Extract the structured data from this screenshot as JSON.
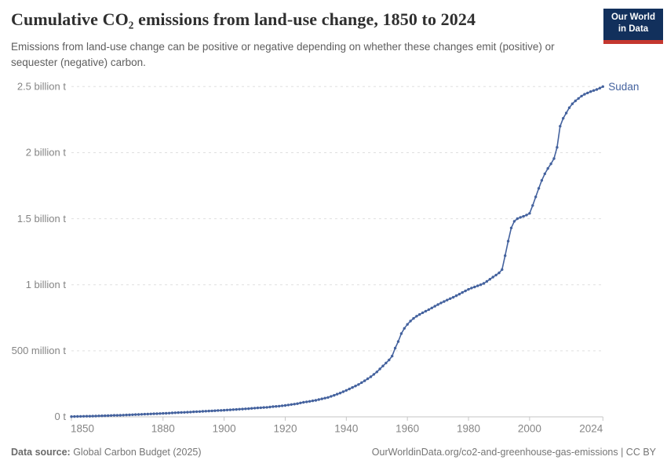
{
  "header": {
    "title": "Cumulative CO₂ emissions from land-use change, 1850 to 2024",
    "subtitle": "Emissions from land-use change can be positive or negative depending on whether these changes emit (positive) or sequester (negative) carbon."
  },
  "logo": {
    "line1": "Our World",
    "line2": "in Data",
    "bg_color": "#12305c",
    "accent_color": "#c4372f"
  },
  "chart_data": {
    "type": "line",
    "title": "Cumulative CO₂ emissions from land-use change, 1850 to 2024",
    "unit": "tonnes of CO₂",
    "xlabel": "",
    "ylabel": "",
    "x_range": [
      1850,
      2024
    ],
    "y_range_billion_t": [
      0,
      2.5
    ],
    "grid": "dashed-horizontal",
    "legend_position": "end-of-line-label",
    "line_color": "#44629e",
    "axis_text_color": "#858585",
    "grid_color": "#e0e0e0",
    "axis_line_color": "#c6c6c6",
    "y_ticks": [
      {
        "value": 0,
        "label": "0 t"
      },
      {
        "value": 0.5,
        "label": "500 million t"
      },
      {
        "value": 1,
        "label": "1 billion t"
      },
      {
        "value": 1.5,
        "label": "1.5 billion t"
      },
      {
        "value": 2,
        "label": "2 billion t"
      },
      {
        "value": 2.5,
        "label": "2.5 billion t"
      }
    ],
    "x_ticks": [
      {
        "year": 1850,
        "label": "1850"
      },
      {
        "year": 1880,
        "label": "1880"
      },
      {
        "year": 1900,
        "label": "1900"
      },
      {
        "year": 1920,
        "label": "1920"
      },
      {
        "year": 1940,
        "label": "1940"
      },
      {
        "year": 1960,
        "label": "1960"
      },
      {
        "year": 1980,
        "label": "1980"
      },
      {
        "year": 2000,
        "label": "2000"
      },
      {
        "year": 2024,
        "label": "2024"
      }
    ],
    "series": [
      {
        "name": "Sudan",
        "unit": "billion t",
        "points": [
          [
            1850,
            0.002
          ],
          [
            1852,
            0.003
          ],
          [
            1854,
            0.004
          ],
          [
            1856,
            0.005
          ],
          [
            1858,
            0.006
          ],
          [
            1860,
            0.008
          ],
          [
            1862,
            0.009
          ],
          [
            1864,
            0.011
          ],
          [
            1866,
            0.012
          ],
          [
            1868,
            0.014
          ],
          [
            1870,
            0.016
          ],
          [
            1872,
            0.018
          ],
          [
            1874,
            0.02
          ],
          [
            1876,
            0.022
          ],
          [
            1878,
            0.024
          ],
          [
            1880,
            0.026
          ],
          [
            1882,
            0.028
          ],
          [
            1884,
            0.031
          ],
          [
            1886,
            0.033
          ],
          [
            1888,
            0.035
          ],
          [
            1890,
            0.038
          ],
          [
            1892,
            0.04
          ],
          [
            1894,
            0.043
          ],
          [
            1896,
            0.045
          ],
          [
            1898,
            0.048
          ],
          [
            1900,
            0.05
          ],
          [
            1902,
            0.053
          ],
          [
            1904,
            0.056
          ],
          [
            1906,
            0.059
          ],
          [
            1908,
            0.062
          ],
          [
            1910,
            0.066
          ],
          [
            1912,
            0.069
          ],
          [
            1914,
            0.072
          ],
          [
            1916,
            0.077
          ],
          [
            1918,
            0.081
          ],
          [
            1920,
            0.086
          ],
          [
            1922,
            0.093
          ],
          [
            1924,
            0.1
          ],
          [
            1926,
            0.11
          ],
          [
            1928,
            0.117
          ],
          [
            1930,
            0.125
          ],
          [
            1932,
            0.136
          ],
          [
            1934,
            0.147
          ],
          [
            1936,
            0.163
          ],
          [
            1938,
            0.18
          ],
          [
            1940,
            0.2
          ],
          [
            1942,
            0.222
          ],
          [
            1944,
            0.245
          ],
          [
            1946,
            0.273
          ],
          [
            1948,
            0.303
          ],
          [
            1950,
            0.34
          ],
          [
            1952,
            0.385
          ],
          [
            1954,
            0.43
          ],
          [
            1955,
            0.46
          ],
          [
            1956,
            0.52
          ],
          [
            1957,
            0.57
          ],
          [
            1958,
            0.63
          ],
          [
            1959,
            0.67
          ],
          [
            1960,
            0.7
          ],
          [
            1961,
            0.725
          ],
          [
            1962,
            0.745
          ],
          [
            1963,
            0.762
          ],
          [
            1964,
            0.775
          ],
          [
            1965,
            0.788
          ],
          [
            1966,
            0.8
          ],
          [
            1967,
            0.812
          ],
          [
            1968,
            0.824
          ],
          [
            1969,
            0.837
          ],
          [
            1970,
            0.85
          ],
          [
            1971,
            0.862
          ],
          [
            1972,
            0.873
          ],
          [
            1973,
            0.884
          ],
          [
            1974,
            0.895
          ],
          [
            1975,
            0.905
          ],
          [
            1976,
            0.917
          ],
          [
            1977,
            0.929
          ],
          [
            1978,
            0.941
          ],
          [
            1979,
            0.953
          ],
          [
            1980,
            0.965
          ],
          [
            1981,
            0.975
          ],
          [
            1982,
            0.983
          ],
          [
            1983,
            0.992
          ],
          [
            1984,
            1.0
          ],
          [
            1985,
            1.01
          ],
          [
            1986,
            1.025
          ],
          [
            1987,
            1.042
          ],
          [
            1988,
            1.058
          ],
          [
            1989,
            1.073
          ],
          [
            1990,
            1.09
          ],
          [
            1991,
            1.115
          ],
          [
            1992,
            1.22
          ],
          [
            1993,
            1.33
          ],
          [
            1994,
            1.43
          ],
          [
            1995,
            1.48
          ],
          [
            1996,
            1.5
          ],
          [
            1997,
            1.51
          ],
          [
            1998,
            1.518
          ],
          [
            1999,
            1.528
          ],
          [
            2000,
            1.54
          ],
          [
            2001,
            1.6
          ],
          [
            2002,
            1.665
          ],
          [
            2003,
            1.73
          ],
          [
            2004,
            1.79
          ],
          [
            2005,
            1.84
          ],
          [
            2006,
            1.88
          ],
          [
            2007,
            1.915
          ],
          [
            2008,
            1.955
          ],
          [
            2009,
            2.04
          ],
          [
            2010,
            2.2
          ],
          [
            2011,
            2.26
          ],
          [
            2012,
            2.3
          ],
          [
            2013,
            2.34
          ],
          [
            2014,
            2.37
          ],
          [
            2015,
            2.392
          ],
          [
            2016,
            2.41
          ],
          [
            2017,
            2.428
          ],
          [
            2018,
            2.442
          ],
          [
            2019,
            2.452
          ],
          [
            2020,
            2.462
          ],
          [
            2021,
            2.47
          ],
          [
            2022,
            2.478
          ],
          [
            2023,
            2.488
          ],
          [
            2024,
            2.5
          ]
        ]
      }
    ]
  },
  "footer": {
    "datasource_label": "Data source:",
    "datasource_value": " Global Carbon Budget (2025)",
    "link_text": "OurWorldinData.org/co2-and-greenhouse-gas-emissions | CC BY"
  }
}
